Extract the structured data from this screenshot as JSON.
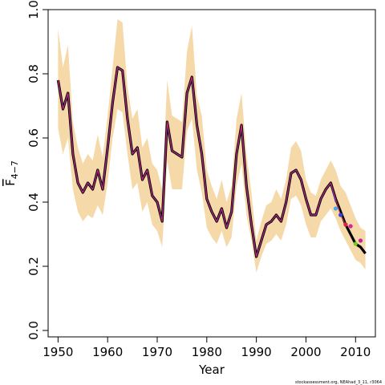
{
  "chart_data": {
    "type": "line",
    "xlabel": "Year",
    "ylabel": {
      "main": "F",
      "sub": "4−7"
    },
    "xlim": [
      1948,
      2014
    ],
    "ylim": [
      0,
      1
    ],
    "x_ticks": [
      1950,
      1960,
      1970,
      1980,
      1990,
      2000,
      2010
    ],
    "y_ticks": [
      {
        "value": 0.0,
        "label": "0.0"
      },
      {
        "value": 0.2,
        "label": "0.2"
      },
      {
        "value": 0.4,
        "label": "0.4"
      },
      {
        "value": 0.6,
        "label": "0.6"
      },
      {
        "value": 0.8,
        "label": "0.8"
      },
      {
        "value": 1.0,
        "label": "1.0"
      }
    ],
    "grid": false,
    "band_color": "#f6d9a8",
    "confidence_band": {
      "x": [
        1950,
        1951,
        1952,
        1953,
        1954,
        1955,
        1956,
        1957,
        1958,
        1959,
        1960,
        1961,
        1962,
        1963,
        1964,
        1965,
        1966,
        1967,
        1968,
        1969,
        1970,
        1971,
        1972,
        1973,
        1974,
        1975,
        1976,
        1977,
        1978,
        1979,
        1980,
        1981,
        1982,
        1983,
        1984,
        1985,
        1986,
        1987,
        1988,
        1989,
        1990,
        1991,
        1992,
        1993,
        1994,
        1995,
        1996,
        1997,
        1998,
        1999,
        2000,
        2001,
        2002,
        2003,
        2004,
        2005,
        2006,
        2007,
        2008,
        2009,
        2010,
        2011,
        2012
      ],
      "upper": [
        0.94,
        0.82,
        0.89,
        0.65,
        0.57,
        0.52,
        0.55,
        0.53,
        0.61,
        0.54,
        0.67,
        0.82,
        0.97,
        0.96,
        0.76,
        0.66,
        0.69,
        0.57,
        0.6,
        0.52,
        0.5,
        0.44,
        0.78,
        0.67,
        0.66,
        0.65,
        0.87,
        0.95,
        0.73,
        0.67,
        0.5,
        0.45,
        0.41,
        0.47,
        0.4,
        0.45,
        0.66,
        0.74,
        0.55,
        0.43,
        0.28,
        0.34,
        0.39,
        0.4,
        0.44,
        0.41,
        0.47,
        0.57,
        0.59,
        0.56,
        0.47,
        0.43,
        0.42,
        0.47,
        0.5,
        0.53,
        0.5,
        0.45,
        0.43,
        0.39,
        0.35,
        0.32,
        0.31
      ],
      "lower": [
        0.63,
        0.55,
        0.6,
        0.44,
        0.37,
        0.34,
        0.36,
        0.35,
        0.39,
        0.36,
        0.46,
        0.6,
        0.69,
        0.68,
        0.55,
        0.44,
        0.46,
        0.37,
        0.4,
        0.33,
        0.31,
        0.26,
        0.53,
        0.44,
        0.44,
        0.44,
        0.62,
        0.66,
        0.5,
        0.43,
        0.32,
        0.29,
        0.27,
        0.31,
        0.26,
        0.29,
        0.45,
        0.52,
        0.36,
        0.28,
        0.18,
        0.23,
        0.27,
        0.28,
        0.3,
        0.28,
        0.33,
        0.41,
        0.42,
        0.39,
        0.33,
        0.29,
        0.29,
        0.34,
        0.36,
        0.38,
        0.35,
        0.31,
        0.28,
        0.25,
        0.22,
        0.21,
        0.19
      ]
    },
    "series": [
      {
        "color": "#000000",
        "x": [
          1950,
          1951,
          1952,
          1953,
          1954,
          1955,
          1956,
          1957,
          1958,
          1959,
          1960,
          1961,
          1962,
          1963,
          1964,
          1965,
          1966,
          1967,
          1968,
          1969,
          1970,
          1971,
          1972,
          1973,
          1974,
          1975,
          1976,
          1977,
          1978,
          1979,
          1980,
          1981,
          1982,
          1983,
          1984,
          1985,
          1986,
          1987,
          1988,
          1989,
          1990,
          1991,
          1992,
          1993,
          1994,
          1995,
          1996,
          1997,
          1998,
          1999,
          2000,
          2001,
          2002,
          2003,
          2004,
          2005,
          2006,
          2007,
          2008,
          2009,
          2010,
          2011,
          2012
        ],
        "values": [
          0.78,
          0.69,
          0.74,
          0.55,
          0.46,
          0.43,
          0.46,
          0.44,
          0.5,
          0.44,
          0.57,
          0.71,
          0.82,
          0.81,
          0.66,
          0.55,
          0.57,
          0.47,
          0.5,
          0.42,
          0.4,
          0.34,
          0.65,
          0.56,
          0.55,
          0.54,
          0.74,
          0.79,
          0.64,
          0.55,
          0.41,
          0.37,
          0.34,
          0.38,
          0.32,
          0.37,
          0.55,
          0.64,
          0.45,
          0.33,
          0.23,
          0.28,
          0.33,
          0.34,
          0.36,
          0.34,
          0.4,
          0.49,
          0.5,
          0.47,
          0.41,
          0.36,
          0.36,
          0.41,
          0.44,
          0.46,
          0.41,
          0.37,
          0.33,
          0.3,
          0.27,
          0.26,
          0.24
        ]
      },
      {
        "color": "#3333cc",
        "x": [
          1950,
          1951,
          1952,
          1953,
          1954,
          1955,
          1956,
          1957,
          1958,
          1959,
          1960,
          1961,
          1962,
          1963,
          1964,
          1965,
          1966,
          1967,
          1968,
          1969,
          1970,
          1971,
          1972,
          1973,
          1974,
          1975,
          1976,
          1977,
          1978,
          1979,
          1980,
          1981,
          1982,
          1983,
          1984,
          1985,
          1986,
          1987,
          1988,
          1989,
          1990,
          1991,
          1992,
          1993,
          1994,
          1995,
          1996,
          1997,
          1998,
          1999,
          2000,
          2001,
          2002,
          2003,
          2004,
          2005,
          2006
        ],
        "values": [
          0.78,
          0.69,
          0.74,
          0.55,
          0.46,
          0.43,
          0.46,
          0.44,
          0.5,
          0.44,
          0.57,
          0.71,
          0.82,
          0.81,
          0.66,
          0.55,
          0.57,
          0.47,
          0.5,
          0.42,
          0.4,
          0.34,
          0.65,
          0.56,
          0.55,
          0.54,
          0.74,
          0.79,
          0.64,
          0.55,
          0.41,
          0.37,
          0.34,
          0.38,
          0.32,
          0.37,
          0.55,
          0.64,
          0.45,
          0.33,
          0.23,
          0.28,
          0.33,
          0.34,
          0.36,
          0.34,
          0.4,
          0.49,
          0.5,
          0.47,
          0.41,
          0.36,
          0.36,
          0.41,
          0.44,
          0.46,
          0.4
        ]
      },
      {
        "color": "#d7245a",
        "x": [
          1950,
          1951,
          1952,
          1953,
          1954,
          1955,
          1956,
          1957,
          1958,
          1959,
          1960,
          1961,
          1962,
          1963,
          1964,
          1965,
          1966,
          1967,
          1968,
          1969,
          1970,
          1971,
          1972,
          1973,
          1974,
          1975,
          1976,
          1977,
          1978,
          1979,
          1980,
          1981,
          1982,
          1983,
          1984,
          1985,
          1986,
          1987,
          1988,
          1989,
          1990,
          1991,
          1992,
          1993,
          1994,
          1995,
          1996,
          1997,
          1998,
          1999,
          2000,
          2001,
          2002,
          2003,
          2004,
          2005,
          2006,
          2007,
          2008
        ],
        "values": [
          0.78,
          0.69,
          0.74,
          0.55,
          0.46,
          0.43,
          0.46,
          0.44,
          0.5,
          0.44,
          0.57,
          0.71,
          0.82,
          0.81,
          0.66,
          0.55,
          0.57,
          0.47,
          0.5,
          0.42,
          0.4,
          0.34,
          0.65,
          0.56,
          0.55,
          0.54,
          0.74,
          0.79,
          0.64,
          0.55,
          0.41,
          0.37,
          0.34,
          0.38,
          0.32,
          0.37,
          0.55,
          0.64,
          0.45,
          0.33,
          0.23,
          0.28,
          0.33,
          0.34,
          0.36,
          0.34,
          0.4,
          0.49,
          0.5,
          0.47,
          0.41,
          0.36,
          0.36,
          0.41,
          0.44,
          0.46,
          0.41,
          0.36,
          0.33
        ]
      }
    ],
    "end_points": [
      {
        "x": 2006,
        "y": 0.38,
        "color": "#4aa6e6"
      },
      {
        "x": 2007,
        "y": 0.36,
        "color": "#3344cc"
      },
      {
        "x": 2008,
        "y": 0.33,
        "color": "#e0204a"
      },
      {
        "x": 2009,
        "y": 0.325,
        "color": "#e0209a"
      },
      {
        "x": 2010,
        "y": 0.27,
        "color": "#77cc22"
      },
      {
        "x": 2011,
        "y": 0.28,
        "color": "#cc2299"
      }
    ]
  },
  "footnote": "stockassessment.org, NEAhad_3_11, r3064"
}
